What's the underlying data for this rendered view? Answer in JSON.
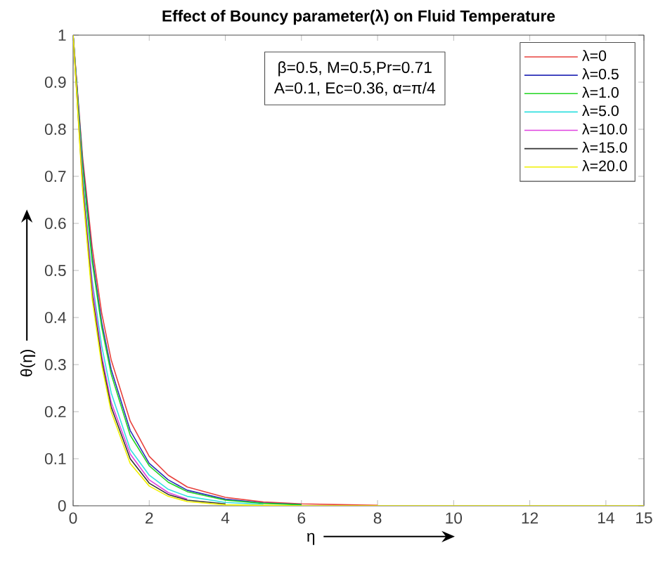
{
  "chart_data": {
    "type": "line",
    "title": "Effect of Bouncy parameter(λ) on Fluid Temperature",
    "xlabel": "η",
    "ylabel": "θ(η)",
    "annotations": [
      "β=0.5, M=0.5,Pr=0.71",
      "A=0.1, Ec=0.36, α=π/4"
    ],
    "x": [
      0,
      0.25,
      0.5,
      0.75,
      1,
      1.5,
      2,
      2.5,
      3,
      4,
      5,
      6,
      8,
      10,
      12,
      15
    ],
    "series": [
      {
        "name": "λ=0",
        "color": "#e8413c",
        "values": [
          1,
          0.74,
          0.55,
          0.41,
          0.31,
          0.18,
          0.105,
          0.065,
          0.04,
          0.018,
          0.008,
          0.004,
          0.001,
          null,
          null,
          null
        ]
      },
      {
        "name": "λ=0.5",
        "color": "#2a2fb8",
        "values": [
          1,
          0.73,
          0.53,
          0.39,
          0.29,
          0.16,
          0.09,
          0.055,
          0.033,
          0.014,
          0.006,
          0.003,
          null,
          null,
          null,
          null
        ]
      },
      {
        "name": "λ=1.0",
        "color": "#22d622",
        "values": [
          1,
          0.72,
          0.52,
          0.38,
          0.28,
          0.15,
          0.085,
          0.05,
          0.03,
          0.012,
          0.005,
          0.002,
          null,
          null,
          null,
          null
        ]
      },
      {
        "name": "λ=5.0",
        "color": "#33e0e0",
        "values": [
          1,
          0.7,
          0.48,
          0.34,
          0.24,
          0.12,
          0.065,
          0.035,
          0.02,
          0.007,
          0.003,
          null,
          null,
          null,
          null,
          null
        ]
      },
      {
        "name": "λ=10.0",
        "color": "#e040e0",
        "values": [
          1,
          0.69,
          0.47,
          0.32,
          0.22,
          0.11,
          0.055,
          0.028,
          0.014,
          null,
          null,
          null,
          null,
          null,
          null,
          null
        ]
      },
      {
        "name": "λ=15.0",
        "color": "#333333",
        "values": [
          1,
          0.68,
          0.45,
          0.31,
          0.21,
          0.1,
          0.048,
          0.024,
          0.012,
          0.004,
          null,
          null,
          null,
          null,
          null,
          null
        ]
      },
      {
        "name": "λ=20.0",
        "color": "#f0f000",
        "values": [
          1,
          0.67,
          0.44,
          0.3,
          0.2,
          0.09,
          0.042,
          0.02,
          0.009,
          0.002,
          0.001,
          0,
          0,
          0,
          0,
          0
        ]
      }
    ],
    "xlim": [
      0,
      15
    ],
    "xticks": [
      0,
      2,
      4,
      6,
      8,
      10,
      12,
      14,
      15
    ],
    "ylim": [
      0,
      1
    ],
    "yticks": [
      0,
      0.1,
      0.2,
      0.3,
      0.4,
      0.5,
      0.6,
      0.7,
      0.8,
      0.9,
      1
    ],
    "legend": "top right",
    "line_style": "solid"
  }
}
